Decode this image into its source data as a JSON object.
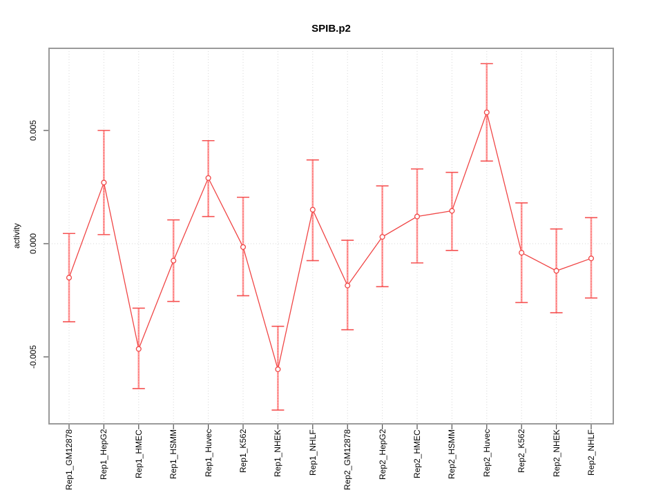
{
  "chart_data": {
    "type": "line",
    "title": "SPIB.p2",
    "ylabel": "activity",
    "xlabel": "",
    "categories": [
      "Rep1_GM12878",
      "Rep1_HepG2",
      "Rep1_HMEC",
      "Rep1_HSMM",
      "Rep1_Huvec",
      "Rep1_K562",
      "Rep1_NHEK",
      "Rep1_NHLF",
      "Rep2_GM12878",
      "Rep2_HepG2",
      "Rep2_HMEC",
      "Rep2_HSMM",
      "Rep2_Huvec",
      "Rep2_K562",
      "Rep2_NHEK",
      "Rep2_NHLF"
    ],
    "series": [
      {
        "name": "activity",
        "marker": "open-circle",
        "values": [
          -0.0015,
          0.0027,
          -0.00465,
          -0.00075,
          0.0029,
          -0.00015,
          -0.00555,
          0.0015,
          -0.00185,
          0.0003,
          0.0012,
          0.00145,
          0.0058,
          -0.0004,
          -0.0012,
          -0.00065
        ],
        "error_high": [
          0.00045,
          0.005,
          -0.00285,
          0.00105,
          0.00455,
          0.00205,
          -0.00365,
          0.0037,
          0.00015,
          0.00255,
          0.0033,
          0.00315,
          0.00795,
          0.0018,
          0.00065,
          0.00115
        ],
        "error_low": [
          -0.00345,
          0.0004,
          -0.0064,
          -0.00255,
          0.0012,
          -0.0023,
          -0.00735,
          -0.00075,
          -0.0038,
          -0.0019,
          -0.00085,
          -0.0003,
          0.00365,
          -0.0026,
          -0.00305,
          -0.0024
        ]
      }
    ],
    "yticks": [
      0.005,
      0.0,
      -0.005
    ],
    "ytick_labels": [
      "0.005",
      "0.000",
      "-0.005"
    ],
    "ylim": [
      -0.0078,
      0.0083
    ],
    "grid": "dotted vertical line at every category; dotted horizontal line at y=0",
    "legend": "none",
    "colors": {
      "line": "#f04545",
      "marker": "#f04545",
      "error_cap": "#f55050",
      "error_bar_body": "#ff9a9a",
      "grid": "#d6d6d6",
      "frame": "#999999",
      "tick": "#4d4d4d",
      "text": "#000000",
      "background": "#ffffff"
    }
  }
}
